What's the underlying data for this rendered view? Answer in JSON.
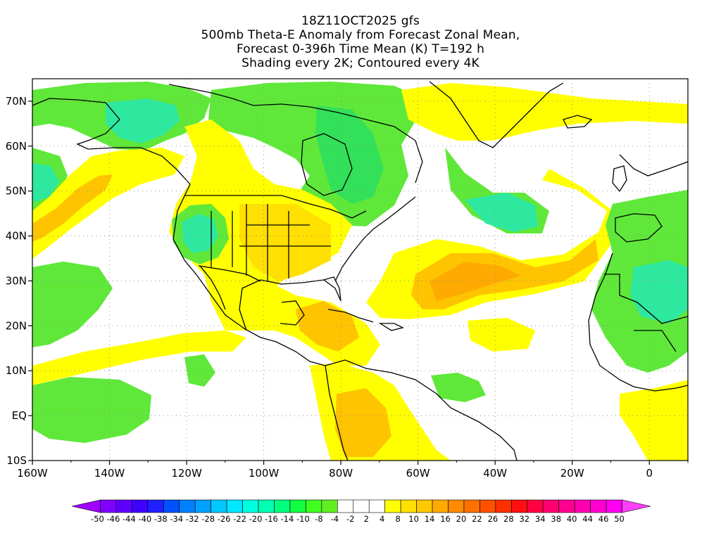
{
  "title": {
    "line1": "18Z11OCT2025 gfs",
    "line2": "500mb Theta-E Anomaly from Forecast Zonal Mean,",
    "line3": "Forecast 0-396h Time Mean (K) T=192 h",
    "line4": "Shading every 2K; Contoured every 4K"
  },
  "map": {
    "lon_range": [
      -160,
      10
    ],
    "lat_range": [
      -10,
      75
    ],
    "lon_ticks": [
      "160W",
      "140W",
      "120W",
      "100W",
      "80W",
      "60W",
      "40W",
      "20W",
      "0"
    ],
    "lat_ticks": [
      "70N",
      "60N",
      "50N",
      "40N",
      "30N",
      "20N",
      "10N",
      "EQ",
      "10S"
    ],
    "gridlines": "dotted"
  },
  "colorbar": {
    "labels": [
      "-50",
      "-46",
      "-44",
      "-40",
      "-38",
      "-34",
      "-32",
      "-28",
      "-26",
      "-22",
      "-20",
      "-16",
      "-14",
      "-10",
      "-8",
      "-4",
      "-2",
      "2",
      "4",
      "8",
      "10",
      "14",
      "16",
      "20",
      "22",
      "26",
      "28",
      "32",
      "34",
      "38",
      "40",
      "44",
      "46",
      "50"
    ],
    "colors": [
      "#9f00ff",
      "#7f00ff",
      "#5f00ff",
      "#3f00ff",
      "#1f1fff",
      "#0050ff",
      "#0080ff",
      "#00a0ff",
      "#00c8ff",
      "#00e8ff",
      "#00ffe0",
      "#00ffb0",
      "#00ff80",
      "#10ff40",
      "#40ff20",
      "#60ee20",
      "#ffffff",
      "#ffffff",
      "#ffffff",
      "#ffff00",
      "#ffe000",
      "#ffc800",
      "#ffaa00",
      "#ff8c00",
      "#ff7000",
      "#ff5000",
      "#ff3000",
      "#ff1010",
      "#ff0040",
      "#ff0070",
      "#ff0090",
      "#ff00b0",
      "#ff00d0",
      "#ff00f0",
      "#ff40ff"
    ]
  },
  "palette": {
    "green": "#5fe83a",
    "green_dark": "#33e05a",
    "teal": "#2ee8a0",
    "yellow": "#ffff00",
    "gold": "#ffe000",
    "amber": "#ffc400",
    "orange": "#ffaa00",
    "coast": "#000000"
  }
}
